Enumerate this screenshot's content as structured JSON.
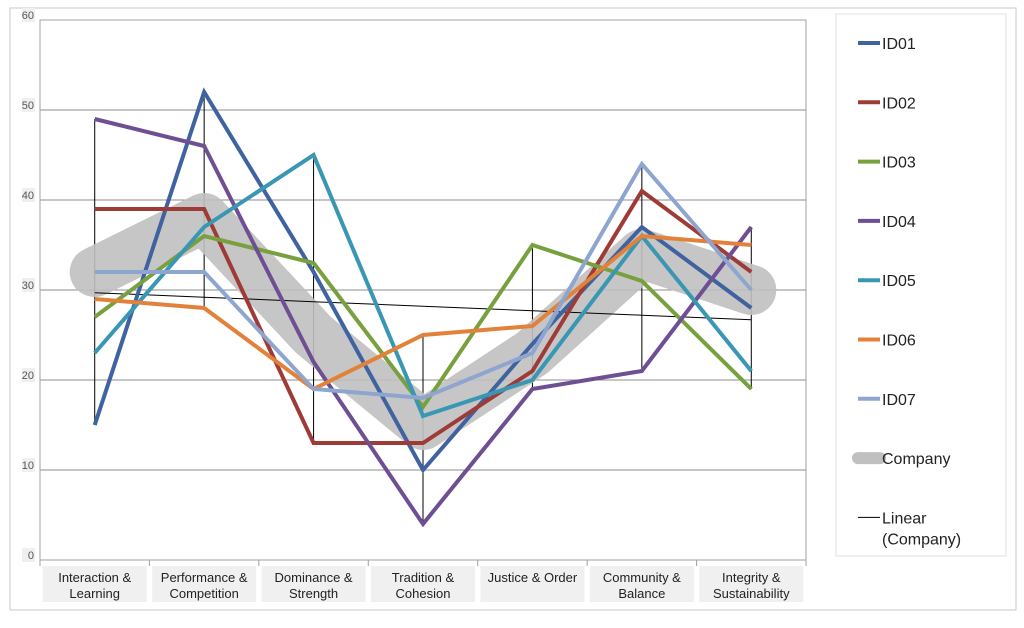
{
  "chart_data": {
    "type": "line",
    "categories": [
      [
        "Interaction &",
        "Learning"
      ],
      [
        "Performance &",
        "Competition"
      ],
      [
        "Dominance &",
        "Strength"
      ],
      [
        "Tradition &",
        "Cohesion"
      ],
      [
        "Justice & Order"
      ],
      [
        "Community &",
        "Balance"
      ],
      [
        "Integrity &",
        "Sustainability"
      ]
    ],
    "ylim": [
      0,
      60
    ],
    "yticks": [
      "0",
      "10",
      "20",
      "30",
      "40",
      "50",
      "60"
    ],
    "grid": true,
    "legend_position": "right",
    "series": [
      {
        "name": "ID01",
        "color": "#3f63a0",
        "values": [
          15,
          52,
          32,
          10,
          24,
          37,
          28
        ]
      },
      {
        "name": "ID02",
        "color": "#9e3b37",
        "values": [
          39,
          39,
          13,
          13,
          21,
          41,
          32
        ]
      },
      {
        "name": "ID03",
        "color": "#78a03f",
        "values": [
          27,
          36,
          33,
          17,
          35,
          31,
          19
        ]
      },
      {
        "name": "ID04",
        "color": "#6e4f93",
        "values": [
          49,
          46,
          22,
          4,
          19,
          21,
          37
        ]
      },
      {
        "name": "ID05",
        "color": "#3a97b4",
        "values": [
          23,
          37,
          45,
          16,
          20,
          36,
          21
        ]
      },
      {
        "name": "ID06",
        "color": "#e2823a",
        "values": [
          29,
          28,
          19,
          25,
          26,
          36,
          35
        ]
      },
      {
        "name": "ID07",
        "color": "#8ea6cf",
        "values": [
          32,
          32,
          19,
          18,
          23,
          44,
          30
        ]
      }
    ],
    "company": {
      "name": "Company",
      "color": "#c0c0c0",
      "values": [
        32,
        38,
        25,
        15,
        23,
        34,
        30
      ]
    },
    "trendline": {
      "name": [
        "Linear",
        "(Company)"
      ],
      "color": "#000000",
      "values": [
        29.7,
        29.2,
        28.7,
        28.2,
        27.7,
        27.2,
        26.7
      ]
    }
  }
}
